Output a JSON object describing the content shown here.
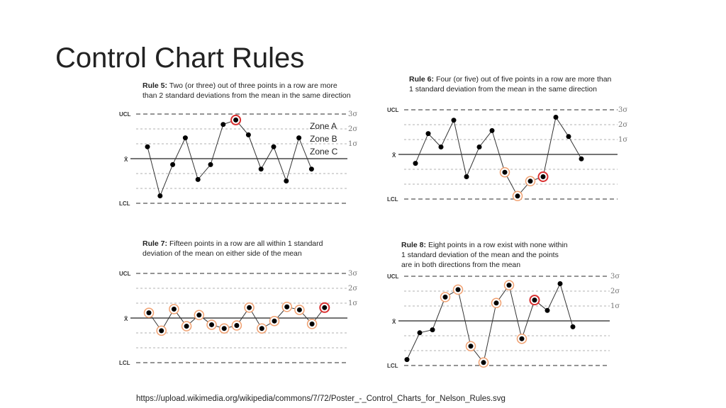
{
  "title": "Control Chart Rules",
  "source": "https://upload.wikimedia.org/wikipedia/commons/7/72/Poster_-_Control_Charts_for_Nelson_Rules.svg",
  "labels": {
    "ucl": "UCL",
    "lcl": "LCL",
    "xbar": "X̄",
    "s3": "3σ",
    "s2": "2σ",
    "s1": "1σ"
  },
  "zones": [
    "Zone A",
    "Zone B",
    "Zone C"
  ],
  "colors": {
    "point": "#000000",
    "highlight_ring": "#f0a070",
    "rule_ring": "#d93030",
    "line": "#333333",
    "dash": "#999999"
  },
  "rules": [
    {
      "id": "rule5",
      "name": "Rule 5:",
      "text_lines": [
        "Two (or three) out of three points in a row are more",
        "than 2 standard deviations from the mean in the same direction"
      ],
      "values": [
        0.8,
        -2.5,
        -0.4,
        1.4,
        -1.4,
        -0.4,
        2.3,
        2.6,
        1.6,
        -0.7,
        0.8,
        -1.5,
        1.4,
        -0.7
      ],
      "marks": [
        "",
        "",
        "",
        "",
        "",
        "",
        "",
        "red",
        "",
        "",
        "",
        "",
        "",
        ""
      ]
    },
    {
      "id": "rule6",
      "name": "Rule 6:",
      "text_lines": [
        "Four (or five) out of five points in a row are more than",
        "1 standard deviation from the mean in the same direction"
      ],
      "values": [
        -0.6,
        1.4,
        0.5,
        2.3,
        -1.5,
        0.5,
        1.6,
        -1.2,
        -2.8,
        -1.8,
        -1.5,
        2.5,
        1.2,
        -0.3
      ],
      "marks": [
        "",
        "",
        "",
        "",
        "",
        "",
        "",
        "orange",
        "orange",
        "orange",
        "red",
        "",
        "",
        ""
      ]
    },
    {
      "id": "rule7",
      "name": "Rule 7:",
      "text_lines": [
        "Fifteen points in a row are all within 1 standard",
        "deviation of the mean on either side of the mean"
      ],
      "values": [
        0.35,
        -0.85,
        0.6,
        -0.55,
        0.2,
        -0.45,
        -0.7,
        -0.5,
        0.7,
        -0.7,
        -0.2,
        0.75,
        0.55,
        -0.4,
        0.7
      ],
      "marks": [
        "orange",
        "orange",
        "orange",
        "orange",
        "orange",
        "orange",
        "orange",
        "orange",
        "orange",
        "orange",
        "orange",
        "orange",
        "orange",
        "orange",
        "red"
      ]
    },
    {
      "id": "rule8",
      "name": "Rule 8:",
      "text_lines": [
        "Eight points in a row exist with none within",
        "1 standard deviation of the mean and the points",
        "are in both directions from the mean"
      ],
      "values": [
        -2.6,
        -0.8,
        -0.6,
        1.6,
        2.1,
        -1.7,
        -2.8,
        1.2,
        2.4,
        -1.2,
        1.4,
        0.7,
        2.5,
        -0.4
      ],
      "marks": [
        "",
        "",
        "",
        "orange",
        "orange",
        "orange",
        "orange",
        "orange",
        "orange",
        "orange",
        "red",
        "",
        "",
        ""
      ]
    }
  ]
}
